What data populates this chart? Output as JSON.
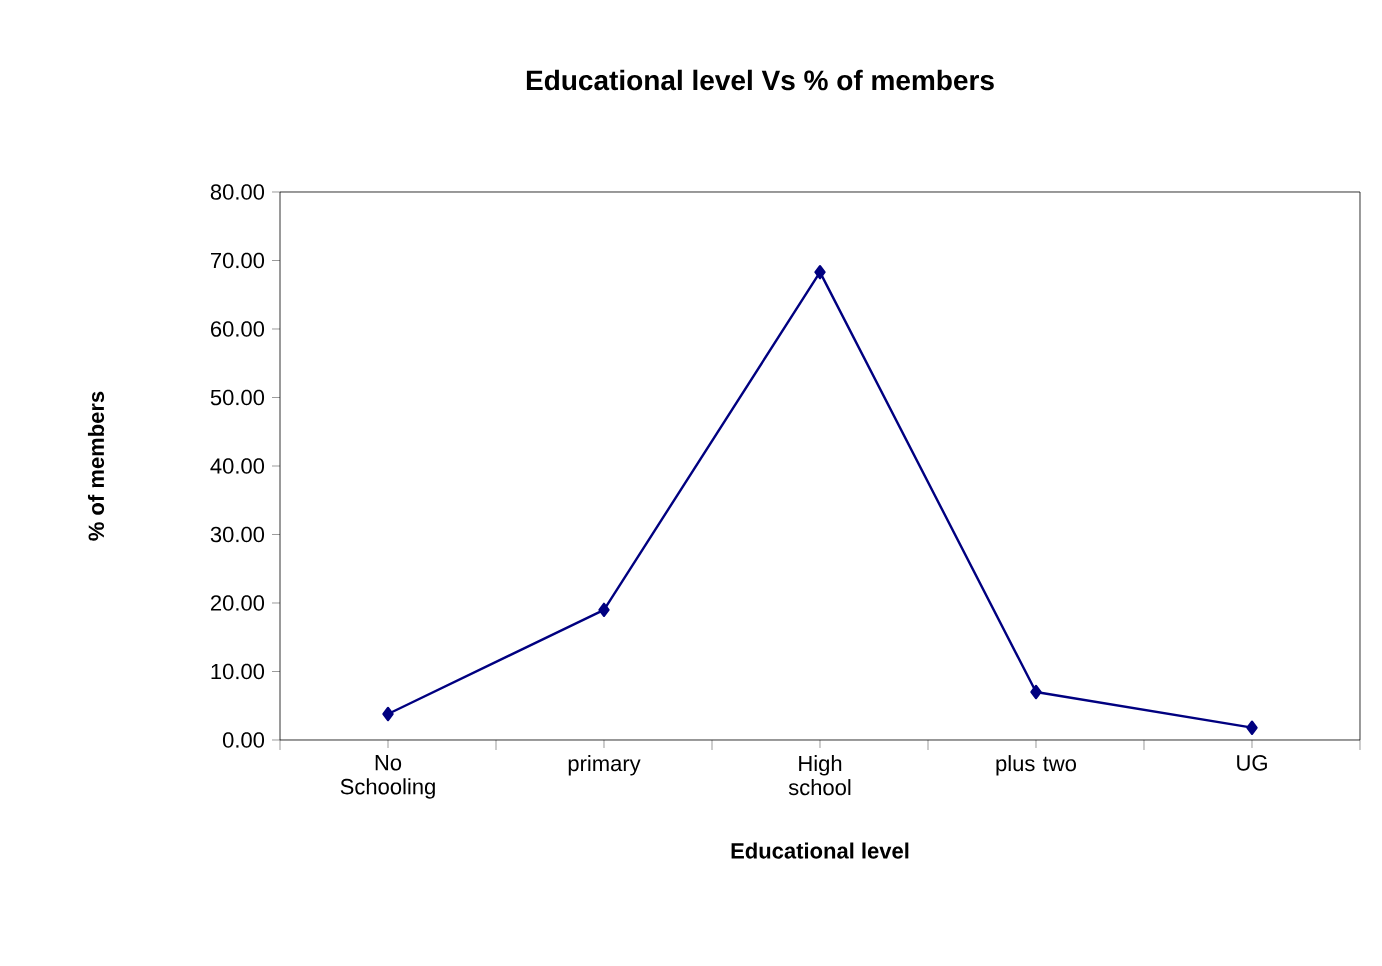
{
  "chart_data": {
    "type": "line",
    "title": "Educational level Vs % of members",
    "xlabel": "Educational level",
    "ylabel": "% of members",
    "categories": [
      "No Schooling",
      "primary",
      "High school",
      "plus two",
      "UG"
    ],
    "series": [
      {
        "color": "#000080",
        "values": [
          3.8,
          19.0,
          68.3,
          7.0,
          1.8
        ]
      }
    ],
    "ylim": [
      0,
      80
    ],
    "yticks": [
      {
        "value": 0,
        "label": "0.00"
      },
      {
        "value": 10,
        "label": "10.00"
      },
      {
        "value": 20,
        "label": "20.00"
      },
      {
        "value": 30,
        "label": "30.00"
      },
      {
        "value": 40,
        "label": "40.00"
      },
      {
        "value": 50,
        "label": "50.00"
      },
      {
        "value": 60,
        "label": "60.00"
      },
      {
        "value": 70,
        "label": "70.00"
      },
      {
        "value": 80,
        "label": "80.00"
      }
    ],
    "grid": false,
    "marker": "diamond",
    "line_style": "solid"
  }
}
